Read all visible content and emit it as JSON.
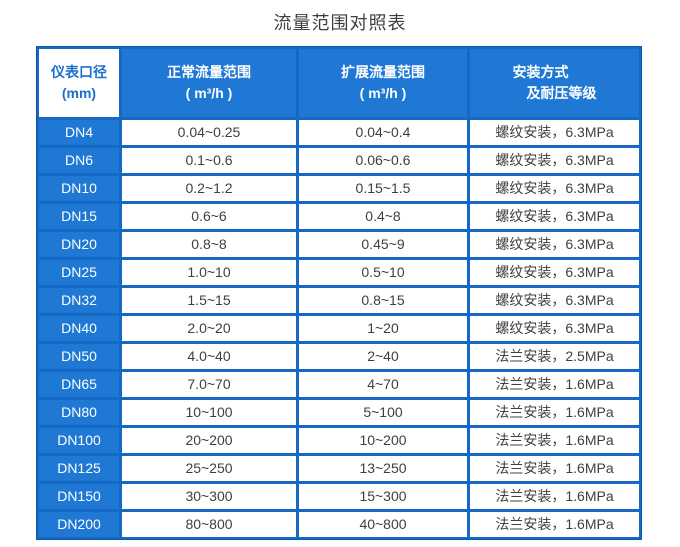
{
  "page": {
    "title": "流量范围对照表"
  },
  "colors": {
    "primary_blue": "#1e78d4",
    "grid_blue": "#1668c5",
    "outer_border_blue": "#0d55a8",
    "data_text": "#3f3f3f"
  },
  "table": {
    "columns": [
      {
        "line1": "仪表口径",
        "line2": "(mm)"
      },
      {
        "line1": "正常流量范围",
        "line2": "( m³/h )"
      },
      {
        "line1": "扩展流量范围",
        "line2": "( m³/h )"
      },
      {
        "line1": "安装方式",
        "line2": "及耐压等级"
      }
    ],
    "rows": [
      {
        "dn": "DN4",
        "normal": "0.04~0.25",
        "extended": "0.04~0.4",
        "install": "螺纹安装，6.3MPa"
      },
      {
        "dn": "DN6",
        "normal": "0.1~0.6",
        "extended": "0.06~0.6",
        "install": "螺纹安装，6.3MPa"
      },
      {
        "dn": "DN10",
        "normal": "0.2~1.2",
        "extended": "0.15~1.5",
        "install": "螺纹安装，6.3MPa"
      },
      {
        "dn": "DN15",
        "normal": "0.6~6",
        "extended": "0.4~8",
        "install": "螺纹安装，6.3MPa"
      },
      {
        "dn": "DN20",
        "normal": "0.8~8",
        "extended": "0.45~9",
        "install": "螺纹安装，6.3MPa"
      },
      {
        "dn": "DN25",
        "normal": "1.0~10",
        "extended": "0.5~10",
        "install": "螺纹安装，6.3MPa"
      },
      {
        "dn": "DN32",
        "normal": "1.5~15",
        "extended": "0.8~15",
        "install": "螺纹安装，6.3MPa"
      },
      {
        "dn": "DN40",
        "normal": "2.0~20",
        "extended": "1~20",
        "install": "螺纹安装，6.3MPa"
      },
      {
        "dn": "DN50",
        "normal": "4.0~40",
        "extended": "2~40",
        "install": "法兰安装，2.5MPa"
      },
      {
        "dn": "DN65",
        "normal": "7.0~70",
        "extended": "4~70",
        "install": "法兰安装，1.6MPa"
      },
      {
        "dn": "DN80",
        "normal": "10~100",
        "extended": "5~100",
        "install": "法兰安装，1.6MPa"
      },
      {
        "dn": "DN100",
        "normal": "20~200",
        "extended": "10~200",
        "install": "法兰安装，1.6MPa"
      },
      {
        "dn": "DN125",
        "normal": "25~250",
        "extended": "13~250",
        "install": "法兰安装，1.6MPa"
      },
      {
        "dn": "DN150",
        "normal": "30~300",
        "extended": "15~300",
        "install": "法兰安装，1.6MPa"
      },
      {
        "dn": "DN200",
        "normal": "80~800",
        "extended": "40~800",
        "install": "法兰安装，1.6MPa"
      }
    ]
  }
}
